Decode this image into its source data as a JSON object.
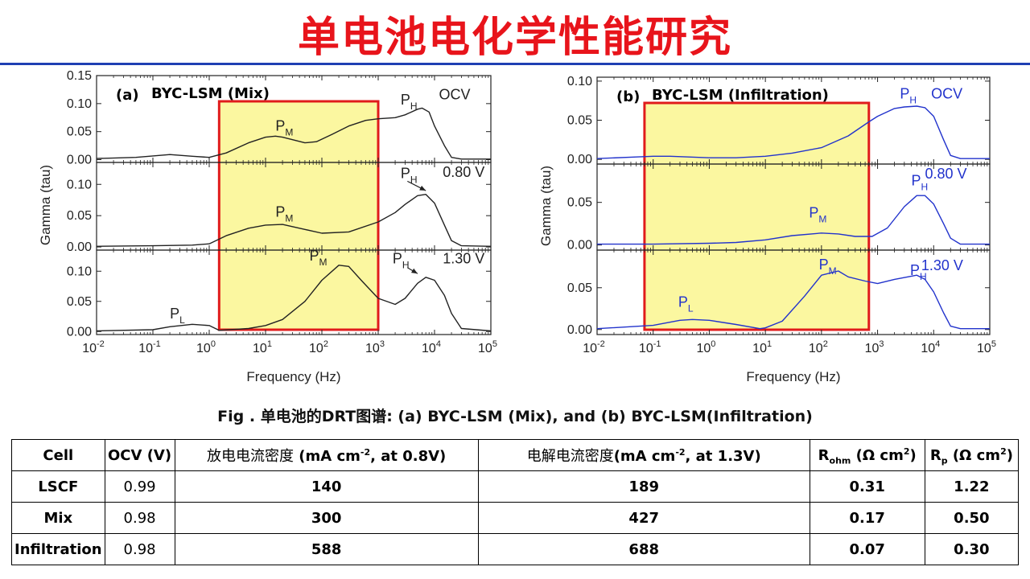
{
  "slide": {
    "title": "单电池电化学性能研究"
  },
  "caption": "Fig . 单电池的DRT图谱: (a) BYC-LSM (Mix), and (b) BYC-LSM(Infiltration)",
  "chart_data": [
    {
      "type": "line",
      "panel_label": "(a)",
      "title": "BYC-LSM (Mix)",
      "xlabel": "Frequency (Hz)",
      "ylabel": "Gamma (tau)",
      "xscale": "log",
      "xlim": [
        0.01,
        100000
      ],
      "x_tick_labels": [
        {
          "base": "10",
          "exp": "-2"
        },
        {
          "base": "10",
          "exp": "-1"
        },
        {
          "base": "10",
          "exp": "0"
        },
        {
          "base": "10",
          "exp": "1"
        },
        {
          "base": "10",
          "exp": "2"
        },
        {
          "base": "10",
          "exp": "3"
        },
        {
          "base": "10",
          "exp": "4"
        },
        {
          "base": "10",
          "exp": "5"
        }
      ],
      "line_color": "#222222",
      "highlight": {
        "x_from": 1.5,
        "x_to": 1000,
        "fill": "#fbf7a0",
        "stroke": "#e01b1b"
      },
      "subplots": [
        {
          "condition": "OCV",
          "ylim": [
            -0.005,
            0.15
          ],
          "y_ticks": [
            "0.00",
            "0.05",
            "0.10",
            "0.15"
          ],
          "y_tick_values": [
            0,
            0.05,
            0.1,
            0.15
          ],
          "series": {
            "x": [
              0.01,
              0.05,
              0.2,
              0.5,
              1,
              2,
              5,
              10,
              15,
              20,
              50,
              80,
              150,
              300,
              600,
              1000,
              2000,
              3000,
              5000,
              6000,
              8000,
              10000,
              15000,
              20000,
              30000,
              100000
            ],
            "y": [
              0.002,
              0.004,
              0.009,
              0.006,
              0.004,
              0.012,
              0.03,
              0.04,
              0.042,
              0.04,
              0.03,
              0.032,
              0.045,
              0.06,
              0.07,
              0.073,
              0.075,
              0.08,
              0.09,
              0.092,
              0.085,
              0.06,
              0.025,
              0.004,
              0.001,
              0.001
            ]
          },
          "annotations": [
            {
              "text": "P",
              "sub": "M",
              "x": 15,
              "y": 0.052
            },
            {
              "text": "P",
              "sub": "H",
              "x": 2500,
              "y": 0.098
            },
            {
              "text": "OCV",
              "x": 12000,
              "y": 0.108
            }
          ]
        },
        {
          "condition": "0.80 V",
          "ylim": [
            -0.005,
            0.135
          ],
          "y_ticks": [
            "0.00",
            "0.05",
            "0.10"
          ],
          "y_tick_values": [
            0,
            0.05,
            0.1
          ],
          "series": {
            "x": [
              0.01,
              0.1,
              0.5,
              1,
              2,
              5,
              10,
              20,
              50,
              100,
              300,
              1000,
              2000,
              3000,
              5000,
              7000,
              10000,
              15000,
              20000,
              30000,
              100000
            ],
            "y": [
              0.001,
              0.002,
              0.003,
              0.005,
              0.018,
              0.03,
              0.035,
              0.036,
              0.028,
              0.022,
              0.024,
              0.04,
              0.055,
              0.068,
              0.082,
              0.084,
              0.07,
              0.035,
              0.01,
              0.002,
              0.001
            ]
          },
          "annotations": [
            {
              "text": "P",
              "sub": "M",
              "x": 15,
              "y": 0.048
            },
            {
              "text": "P",
              "sub": "H",
              "x": 2500,
              "y": 0.11
            },
            {
              "text": "0.80 V",
              "x": 14000,
              "y": 0.112
            }
          ],
          "arrow": {
            "from_x": 3300,
            "from_y": 0.105,
            "to_x": 7000,
            "to_y": 0.09
          }
        },
        {
          "condition": "1.30 V",
          "ylim": [
            -0.005,
            0.135
          ],
          "y_ticks": [
            "0.00",
            "0.05",
            "0.10"
          ],
          "y_tick_values": [
            0,
            0.05,
            0.1
          ],
          "series": {
            "x": [
              0.01,
              0.1,
              0.2,
              0.5,
              1,
              1.5,
              5,
              10,
              20,
              50,
              100,
              200,
              300,
              500,
              1000,
              2000,
              3000,
              5000,
              7000,
              10000,
              15000,
              20000,
              30000,
              100000
            ],
            "y": [
              0.001,
              0.003,
              0.008,
              0.012,
              0.01,
              0.002,
              0.005,
              0.01,
              0.02,
              0.05,
              0.085,
              0.11,
              0.108,
              0.085,
              0.055,
              0.045,
              0.055,
              0.08,
              0.09,
              0.085,
              0.06,
              0.03,
              0.005,
              0.001
            ]
          },
          "annotations": [
            {
              "text": "P",
              "sub": "L",
              "x": 0.2,
              "y": 0.022
            },
            {
              "text": "P",
              "sub": "M",
              "x": 60,
              "y": 0.118
            },
            {
              "text": "P",
              "sub": "H",
              "x": 1800,
              "y": 0.113
            },
            {
              "text": "1.30 V",
              "x": 14000,
              "y": 0.113
            }
          ],
          "arrow": {
            "from_x": 3300,
            "from_y": 0.106,
            "to_x": 5000,
            "to_y": 0.096
          }
        }
      ]
    },
    {
      "type": "line",
      "panel_label": "(b)",
      "title": "BYC-LSM (Infiltration)",
      "xlabel": "Frequency (Hz)",
      "ylabel": "Gamma (tau)",
      "xscale": "log",
      "xlim": [
        0.01,
        100000
      ],
      "x_tick_labels": [
        {
          "base": "10",
          "exp": "-2"
        },
        {
          "base": "10",
          "exp": "-1"
        },
        {
          "base": "10",
          "exp": "0"
        },
        {
          "base": "10",
          "exp": "1"
        },
        {
          "base": "10",
          "exp": "2"
        },
        {
          "base": "10",
          "exp": "3"
        },
        {
          "base": "10",
          "exp": "4"
        },
        {
          "base": "10",
          "exp": "5"
        }
      ],
      "line_color": "#2233cc",
      "highlight": {
        "x_from": 0.07,
        "x_to": 700,
        "fill": "#fbf7a0",
        "stroke": "#e01b1b"
      },
      "subplots": [
        {
          "condition": "OCV",
          "ylim": [
            -0.006,
            0.105
          ],
          "y_ticks": [
            "0.00",
            "0.05",
            "0.10"
          ],
          "y_tick_values": [
            0,
            0.05,
            0.1
          ],
          "series": {
            "x": [
              0.01,
              0.05,
              0.1,
              0.2,
              1,
              3,
              10,
              30,
              100,
              300,
              700,
              1000,
              2000,
              3000,
              5000,
              7000,
              10000,
              15000,
              20000,
              30000,
              100000
            ],
            "y": [
              0.001,
              0.003,
              0.004,
              0.004,
              0.002,
              0.002,
              0.004,
              0.008,
              0.015,
              0.03,
              0.048,
              0.055,
              0.065,
              0.067,
              0.068,
              0.066,
              0.055,
              0.025,
              0.005,
              0.001,
              0.001
            ]
          },
          "annotations": [
            {
              "text": "P",
              "sub": "H",
              "x": 2500,
              "y": 0.078
            },
            {
              "text": "OCV",
              "x": 9000,
              "y": 0.078
            }
          ]
        },
        {
          "condition": "0.80 V",
          "ylim": [
            -0.006,
            0.095
          ],
          "y_ticks": [
            "0.00",
            "0.05"
          ],
          "y_tick_values": [
            0,
            0.05
          ],
          "series": {
            "x": [
              0.01,
              0.1,
              1,
              3,
              10,
              30,
              100,
              200,
              400,
              800,
              1500,
              3000,
              5000,
              7000,
              10000,
              15000,
              20000,
              30000,
              100000
            ],
            "y": [
              0.001,
              0.001,
              0.002,
              0.003,
              0.006,
              0.011,
              0.014,
              0.013,
              0.01,
              0.01,
              0.02,
              0.045,
              0.058,
              0.058,
              0.048,
              0.025,
              0.008,
              0.001,
              0.001
            ]
          },
          "annotations": [
            {
              "text": "P",
              "sub": "M",
              "x": 60,
              "y": 0.032
            },
            {
              "text": "P",
              "sub": "H",
              "x": 4000,
              "y": 0.07
            },
            {
              "text": "0.80 V",
              "x": 7000,
              "y": 0.078
            }
          ]
        },
        {
          "condition": "1.30 V",
          "ylim": [
            -0.006,
            0.095
          ],
          "y_ticks": [
            "0.00",
            "0.05"
          ],
          "y_tick_values": [
            0,
            0.05
          ],
          "series": {
            "x": [
              0.01,
              0.1,
              0.3,
              0.5,
              1,
              3,
              8,
              10,
              20,
              50,
              100,
              200,
              300,
              600,
              1000,
              2000,
              5000,
              7000,
              10000,
              15000,
              20000,
              30000,
              100000
            ],
            "y": [
              0.001,
              0.005,
              0.011,
              0.012,
              0.011,
              0.006,
              0.001,
              0.002,
              0.01,
              0.04,
              0.065,
              0.07,
              0.063,
              0.058,
              0.055,
              0.06,
              0.065,
              0.06,
              0.045,
              0.02,
              0.004,
              0.001,
              0.001
            ]
          },
          "annotations": [
            {
              "text": "P",
              "sub": "L",
              "x": 0.28,
              "y": 0.027
            },
            {
              "text": "P",
              "sub": "M",
              "x": 90,
              "y": 0.072
            },
            {
              "text": "P",
              "sub": "H",
              "x": 3800,
              "y": 0.065
            },
            {
              "text": "1.30 V",
              "x": 6000,
              "y": 0.071
            }
          ]
        }
      ]
    }
  ],
  "table": {
    "headers": {
      "cell": "Cell",
      "ocv": "OCV (V)",
      "discharge_cn": "放电电流密度",
      "discharge_unit_a": " (mA cm",
      "discharge_unit_sup": "-2",
      "discharge_unit_b": ", at 0.8V)",
      "electrolysis_cn": "电解电流密度",
      "electrolysis_unit_a": "(mA cm",
      "electrolysis_unit_sup": "-2",
      "electrolysis_unit_b": ", at 1.3V)",
      "rohm_main": "R",
      "rohm_sub": "ohm",
      "rohm_unit_a": " (Ω cm",
      "rohm_unit_sup": "2",
      "rohm_unit_b": ")",
      "rp_main": "R",
      "rp_sub": "p",
      "rp_unit_a": " (Ω cm",
      "rp_unit_sup": "2",
      "rp_unit_b": ")"
    },
    "rows": [
      {
        "cell": "LSCF",
        "ocv": "0.99",
        "discharge": "140",
        "electrolysis": "189",
        "rohm": "0.31",
        "rp": "1.22"
      },
      {
        "cell": "Mix",
        "ocv": "0.98",
        "discharge": "300",
        "electrolysis": "427",
        "rohm": "0.17",
        "rp": "0.50"
      },
      {
        "cell": "Infiltration",
        "ocv": "0.98",
        "discharge": "588",
        "electrolysis": "688",
        "rohm": "0.07",
        "rp": "0.30"
      }
    ]
  }
}
